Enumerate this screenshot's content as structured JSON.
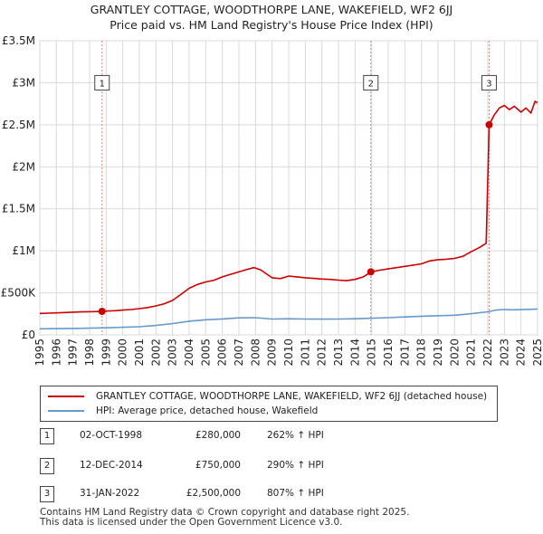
{
  "title_line1": "GRANTLEY COTTAGE, WOODTHORPE LANE, WAKEFIELD, WF2 6JJ",
  "title_line2": "Price paid vs. HM Land Registry's House Price Index (HPI)",
  "chart_data": {
    "type": "line",
    "title": "GRANTLEY COTTAGE, WOODTHORPE LANE, WAKEFIELD, WF2 6JJ — Price paid vs. HM Land Registry's House Price Index (HPI)",
    "xlim": [
      1995,
      2025
    ],
    "ylim": [
      0,
      3500000
    ],
    "y_ticks": [
      {
        "value": 0,
        "label": "£0"
      },
      {
        "value": 500000,
        "label": "£500K"
      },
      {
        "value": 1000000,
        "label": "£1M"
      },
      {
        "value": 1500000,
        "label": "£1.5M"
      },
      {
        "value": 2000000,
        "label": "£2M"
      },
      {
        "value": 2500000,
        "label": "£2.5M"
      },
      {
        "value": 3000000,
        "label": "£3M"
      },
      {
        "value": 3500000,
        "label": "£3.5M"
      }
    ],
    "x_ticks": [
      "1995",
      "1996",
      "1997",
      "1998",
      "1999",
      "2000",
      "2001",
      "2002",
      "2003",
      "2004",
      "2005",
      "2006",
      "2007",
      "2008",
      "2009",
      "2010",
      "2011",
      "2012",
      "2013",
      "2014",
      "2015",
      "2016",
      "2017",
      "2018",
      "2019",
      "2020",
      "2021",
      "2022",
      "2023",
      "2024",
      "2025"
    ],
    "grid": true,
    "series": [
      {
        "name": "GRANTLEY COTTAGE, WOODTHORPE LANE, WAKEFIELD, WF2 6JJ (detached house)",
        "color": "#cc0000",
        "points": [
          [
            1995.0,
            255000
          ],
          [
            1995.5,
            258000
          ],
          [
            1996.0,
            262000
          ],
          [
            1996.5,
            266000
          ],
          [
            1997.0,
            270000
          ],
          [
            1997.5,
            274000
          ],
          [
            1998.0,
            276000
          ],
          [
            1998.5,
            278000
          ],
          [
            1998.75,
            280000
          ],
          [
            1999.0,
            283000
          ],
          [
            1999.5,
            288000
          ],
          [
            2000.0,
            295000
          ],
          [
            2000.5,
            302000
          ],
          [
            2001.0,
            312000
          ],
          [
            2001.5,
            325000
          ],
          [
            2002.0,
            345000
          ],
          [
            2002.5,
            370000
          ],
          [
            2003.0,
            410000
          ],
          [
            2003.5,
            480000
          ],
          [
            2004.0,
            555000
          ],
          [
            2004.5,
            600000
          ],
          [
            2005.0,
            630000
          ],
          [
            2005.5,
            650000
          ],
          [
            2006.0,
            690000
          ],
          [
            2006.5,
            720000
          ],
          [
            2007.0,
            750000
          ],
          [
            2007.5,
            780000
          ],
          [
            2007.9,
            800000
          ],
          [
            2008.3,
            775000
          ],
          [
            2008.7,
            720000
          ],
          [
            2009.0,
            680000
          ],
          [
            2009.5,
            670000
          ],
          [
            2010.0,
            700000
          ],
          [
            2010.5,
            690000
          ],
          [
            2011.0,
            680000
          ],
          [
            2011.5,
            672000
          ],
          [
            2012.0,
            665000
          ],
          [
            2012.5,
            660000
          ],
          [
            2013.0,
            652000
          ],
          [
            2013.5,
            645000
          ],
          [
            2014.0,
            660000
          ],
          [
            2014.5,
            690000
          ],
          [
            2014.95,
            750000
          ],
          [
            2015.5,
            770000
          ],
          [
            2016.0,
            785000
          ],
          [
            2016.5,
            800000
          ],
          [
            2017.0,
            815000
          ],
          [
            2017.5,
            830000
          ],
          [
            2018.0,
            845000
          ],
          [
            2018.5,
            880000
          ],
          [
            2019.0,
            895000
          ],
          [
            2019.5,
            900000
          ],
          [
            2020.0,
            910000
          ],
          [
            2020.5,
            935000
          ],
          [
            2021.0,
            990000
          ],
          [
            2021.5,
            1040000
          ],
          [
            2021.9,
            1090000
          ],
          [
            2022.08,
            2500000
          ],
          [
            2022.4,
            2620000
          ],
          [
            2022.7,
            2700000
          ],
          [
            2023.0,
            2730000
          ],
          [
            2023.3,
            2680000
          ],
          [
            2023.6,
            2720000
          ],
          [
            2024.0,
            2650000
          ],
          [
            2024.3,
            2700000
          ],
          [
            2024.6,
            2640000
          ],
          [
            2024.85,
            2780000
          ],
          [
            2025.0,
            2760000
          ]
        ]
      },
      {
        "name": "HPI: Average price, detached house, Wakefield",
        "color": "#6699cc",
        "points": [
          [
            1995.0,
            72000
          ],
          [
            1996.0,
            74000
          ],
          [
            1997.0,
            77000
          ],
          [
            1998.0,
            80000
          ],
          [
            1999.0,
            84000
          ],
          [
            2000.0,
            90000
          ],
          [
            2001.0,
            97000
          ],
          [
            2002.0,
            112000
          ],
          [
            2003.0,
            135000
          ],
          [
            2004.0,
            163000
          ],
          [
            2005.0,
            180000
          ],
          [
            2006.0,
            190000
          ],
          [
            2007.0,
            202000
          ],
          [
            2008.0,
            205000
          ],
          [
            2009.0,
            188000
          ],
          [
            2010.0,
            192000
          ],
          [
            2011.0,
            188000
          ],
          [
            2012.0,
            187000
          ],
          [
            2013.0,
            188000
          ],
          [
            2014.0,
            192000
          ],
          [
            2015.0,
            198000
          ],
          [
            2016.0,
            205000
          ],
          [
            2017.0,
            213000
          ],
          [
            2018.0,
            222000
          ],
          [
            2019.0,
            228000
          ],
          [
            2020.0,
            234000
          ],
          [
            2021.0,
            252000
          ],
          [
            2022.0,
            275000
          ],
          [
            2022.5,
            295000
          ],
          [
            2023.0,
            302000
          ],
          [
            2023.5,
            298000
          ],
          [
            2024.0,
            300000
          ],
          [
            2024.5,
            304000
          ],
          [
            2025.0,
            308000
          ]
        ]
      }
    ],
    "sales": [
      {
        "n": "1",
        "x": 1998.75,
        "y": 280000
      },
      {
        "n": "2",
        "x": 2014.95,
        "y": 750000
      },
      {
        "n": "3",
        "x": 2022.08,
        "y": 2500000
      }
    ],
    "marker_label_value": 3000000
  },
  "legend": {
    "property": "GRANTLEY COTTAGE, WOODTHORPE LANE, WAKEFIELD, WF2 6JJ (detached house)",
    "hpi": "HPI: Average price, detached house, Wakefield",
    "property_color": "#cc0000",
    "hpi_color": "#6699cc"
  },
  "sales_table": [
    {
      "n": "1",
      "date": "02-OCT-1998",
      "price": "£280,000",
      "hpi": "262% ↑ HPI"
    },
    {
      "n": "2",
      "date": "12-DEC-2014",
      "price": "£750,000",
      "hpi": "290% ↑ HPI"
    },
    {
      "n": "3",
      "date": "31-JAN-2022",
      "price": "£2,500,000",
      "hpi": "807% ↑ HPI"
    }
  ],
  "footer_line1": "Contains HM Land Registry data © Crown copyright and database right 2025.",
  "footer_line2": "This data is licensed under the Open Government Licence v3.0."
}
